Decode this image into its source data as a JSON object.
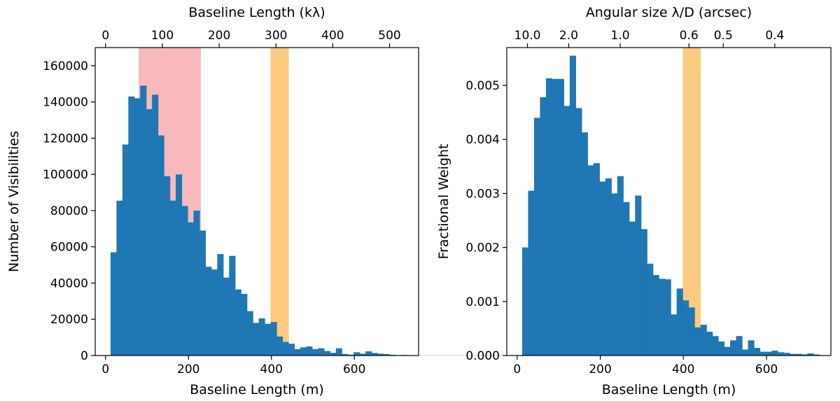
{
  "chart_data": [
    {
      "type": "bar",
      "panel": "left",
      "xlabel": "Baseline Length (m)",
      "ylabel": "Number of Visibilities",
      "top_axis_label": "Baseline Length (kλ)",
      "xlim": [
        -25,
        755
      ],
      "ylim": [
        0,
        170000
      ],
      "xticks": [
        0,
        200,
        400,
        600
      ],
      "xtick_labels": [
        "0",
        "200",
        "400",
        "600"
      ],
      "yticks": [
        0,
        20000,
        40000,
        60000,
        80000,
        100000,
        120000,
        140000,
        160000
      ],
      "ytick_labels": [
        "0",
        "20000",
        "40000",
        "60000",
        "80000",
        "100000",
        "120000",
        "140000",
        "160000"
      ],
      "top_ticks": [
        0,
        100,
        200,
        300,
        400,
        500
      ],
      "top_tick_labels": [
        "0",
        "100",
        "200",
        "300",
        "400",
        "500"
      ],
      "top_tick_m_per_unit": 1.37,
      "bar_color": "#1f77b4",
      "bins": {
        "start": 12,
        "width": 14.3,
        "values": [
          57000,
          85500,
          116500,
          143000,
          142000,
          149000,
          136000,
          144000,
          121500,
          99000,
          85500,
          100000,
          82500,
          73500,
          80000,
          69000,
          49000,
          47500,
          56000,
          43000,
          55000,
          36500,
          34000,
          24500,
          18000,
          20500,
          17500,
          18500,
          10500,
          7500,
          6500,
          3500,
          4500,
          5000,
          3500,
          4000,
          2500,
          1500,
          4000,
          800,
          500,
          1800,
          1000,
          2300,
          1400,
          1000,
          800,
          400,
          200,
          300,
          100,
          100,
          100,
          100,
          100,
          100,
          100,
          100,
          100,
          100,
          100,
          100,
          100,
          100,
          100,
          100,
          100,
          100,
          100,
          100,
          800,
          600,
          400,
          300,
          250,
          200,
          150,
          100,
          100,
          100,
          100,
          100,
          100,
          100,
          100,
          100,
          100,
          100,
          100,
          100,
          100,
          100,
          100,
          100,
          100,
          100,
          100,
          100,
          100,
          100,
          100,
          100,
          100,
          1800
        ]
      },
      "shaded_regions": [
        {
          "x0": 80,
          "x1": 230,
          "color": "#f8b9bd"
        },
        {
          "x0": 398,
          "x1": 442,
          "color": "#fdcb7f"
        }
      ]
    },
    {
      "type": "bar",
      "panel": "right",
      "xlabel": "Baseline Length (m)",
      "ylabel": "Fractional Weight",
      "top_axis_label": "Angular size λ/D (arcsec)",
      "xlim": [
        -25,
        755
      ],
      "ylim": [
        0,
        0.0057
      ],
      "xticks": [
        0,
        200,
        400,
        600
      ],
      "xtick_labels": [
        "0",
        "200",
        "400",
        "600"
      ],
      "yticks": [
        0,
        0.001,
        0.002,
        0.003,
        0.004,
        0.005
      ],
      "ytick_labels": [
        "0.000",
        "0.001",
        "0.002",
        "0.003",
        "0.004",
        "0.005"
      ],
      "top_ticks": [
        10.0,
        2.0,
        1.0,
        0.6,
        0.5,
        0.4
      ],
      "top_tick_labels": [
        "10.0",
        "2.0",
        "1.0",
        "0.6",
        "0.5",
        "0.4"
      ],
      "top_tick_m_per_inv_arcsec": 248,
      "bar_color": "#1f77b4",
      "bins": {
        "start": 12,
        "width": 14.3,
        "values": [
          0.002,
          0.00305,
          0.0044,
          0.00478,
          0.00513,
          0.00512,
          0.00512,
          0.00462,
          0.00555,
          0.00458,
          0.00413,
          0.00352,
          0.00356,
          0.00322,
          0.00328,
          0.003,
          0.00332,
          0.00284,
          0.00248,
          0.00296,
          0.00234,
          0.0017,
          0.00149,
          0.00142,
          0.00141,
          0.00076,
          0.00124,
          0.00102,
          0.00089,
          0.00052,
          0.00057,
          0.00044,
          0.00036,
          0.00026,
          0.00016,
          0.00028,
          0.00036,
          0.00011,
          0.00028,
          0.00014,
          7e-05,
          7e-05,
          9e-05,
          6e-05,
          5e-05,
          3e-05,
          3e-05,
          2e-05,
          4e-05,
          2e-05
        ]
      },
      "shaded_regions": [
        {
          "x0": 398,
          "x1": 442,
          "color": "#fdcb7f"
        }
      ]
    }
  ]
}
